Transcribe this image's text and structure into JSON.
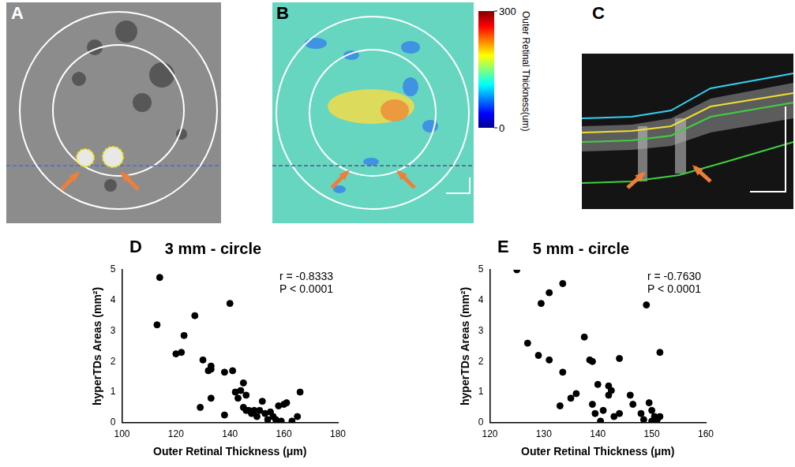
{
  "panels": {
    "A": {
      "letter": "A"
    },
    "B": {
      "letter": "B",
      "colorbar": {
        "label": "Outer Retinal Thickness(um)",
        "range": [
          0,
          300
        ],
        "ticks": [
          0,
          300
        ]
      }
    },
    "C": {
      "letter": "C"
    }
  },
  "chart_data": [
    {
      "type": "scatter",
      "panel": "D",
      "title": "3 mm - circle",
      "x_label": "Outer Retinal Thickness (μm)",
      "y_label": "hyperTDs Areas (mm²)",
      "annotations": [
        "r = -0.8333",
        "P < 0.0001"
      ],
      "color": "#000000",
      "grid": false,
      "xlim": [
        100,
        180
      ],
      "xticks": [
        100,
        120,
        140,
        160,
        180
      ],
      "ylim": [
        0,
        5
      ],
      "yticks": [
        0,
        1,
        2,
        3,
        4,
        5
      ],
      "x": [
        114,
        113,
        120,
        122,
        123,
        127,
        129,
        130,
        132,
        133,
        133,
        133,
        138,
        138,
        140,
        141,
        142,
        143,
        144,
        145,
        145,
        146,
        146,
        147,
        148,
        149,
        150,
        151,
        152,
        153,
        154,
        155,
        156,
        157,
        158,
        159,
        160,
        161,
        163,
        165,
        166
      ],
      "values": [
        4.75,
        3.2,
        2.25,
        2.3,
        2.85,
        3.5,
        0.5,
        2.05,
        1.7,
        1.85,
        1.75,
        0.8,
        0.25,
        1.65,
        3.9,
        1.7,
        1.0,
        0.8,
        1.05,
        1.3,
        0.5,
        0.4,
        0.9,
        0.4,
        0.3,
        0.4,
        0.2,
        0.4,
        0.7,
        0.3,
        0.1,
        0.35,
        0.2,
        0.1,
        0.55,
        0.05,
        0.6,
        0.65,
        0.05,
        0.2,
        1.0
      ]
    },
    {
      "type": "scatter",
      "panel": "E",
      "title": "5 mm - circle",
      "x_label": "Outer Retinal Thickness (μm)",
      "y_label": "hyperTDs Areas (mm²)",
      "annotations": [
        "r = -0.7630",
        "P < 0.0001"
      ],
      "color": "#000000",
      "grid": false,
      "xlim": [
        120,
        160
      ],
      "xticks": [
        120,
        130,
        140,
        150,
        160
      ],
      "ylim": [
        0,
        5
      ],
      "yticks": [
        0,
        1,
        2,
        3,
        4,
        5
      ],
      "x": [
        125,
        127,
        129.5,
        129,
        131,
        133.5,
        131,
        133.5,
        133,
        135,
        136,
        137.5,
        138.5,
        139,
        139,
        139.5,
        140,
        140.5,
        141,
        142,
        142,
        142.5,
        143,
        144,
        144,
        146,
        146.5,
        148,
        148.5,
        149,
        149.5,
        150,
        150,
        150.5,
        151,
        151.5,
        151.5
      ],
      "values": [
        5.0,
        2.6,
        3.9,
        2.2,
        4.25,
        4.55,
        2.05,
        1.65,
        0.55,
        0.8,
        0.95,
        2.8,
        2.05,
        2.0,
        0.6,
        0.3,
        1.25,
        0.05,
        0.4,
        1.2,
        0.9,
        1.05,
        0.2,
        2.1,
        0.3,
        0.9,
        0.6,
        0.3,
        0.1,
        3.85,
        0.65,
        0.4,
        0.05,
        0.2,
        0.1,
        2.3,
        0.2
      ]
    }
  ]
}
